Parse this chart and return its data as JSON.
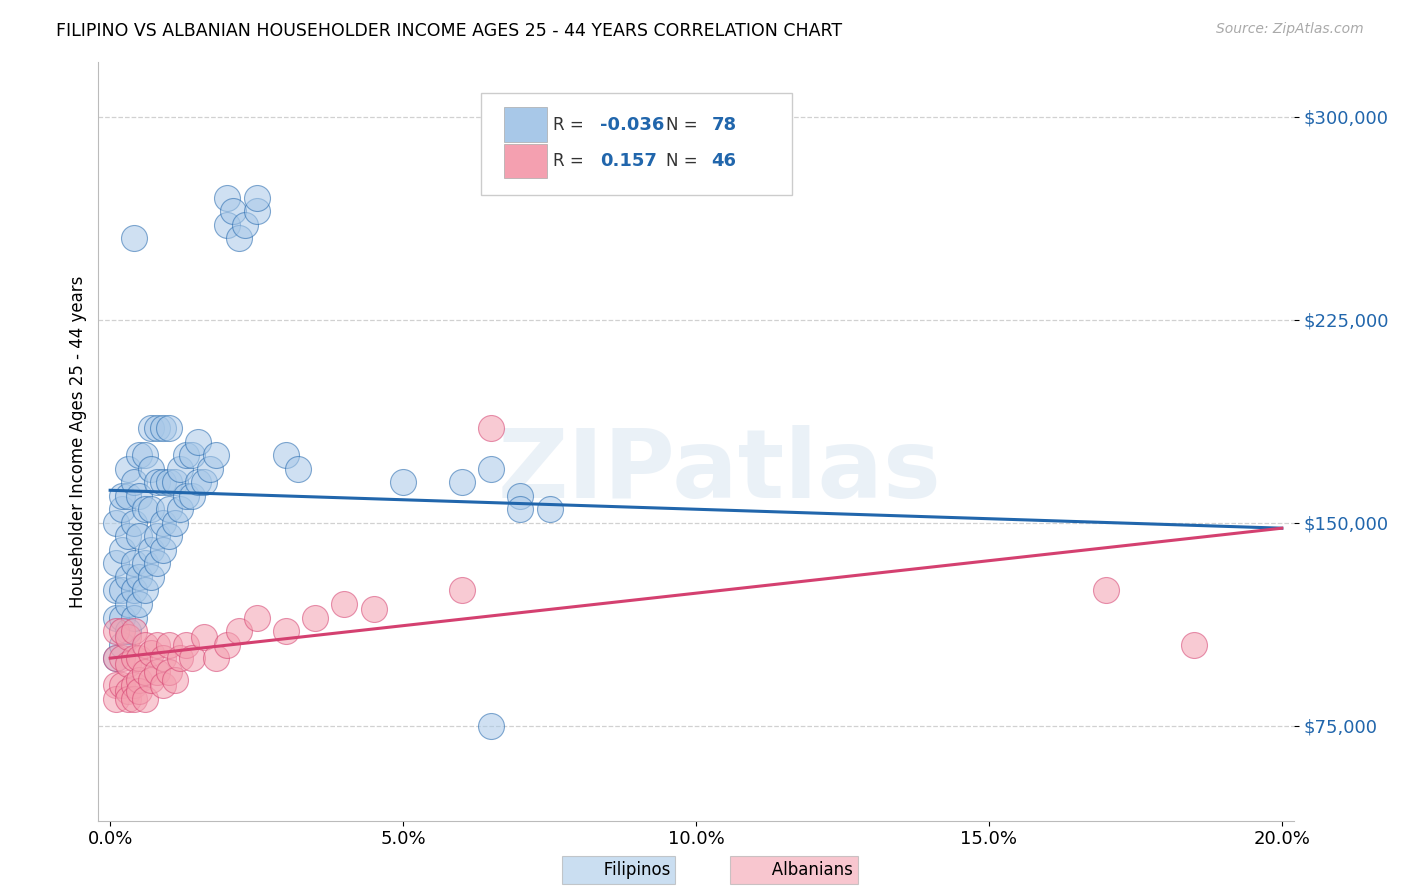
{
  "title": "FILIPINO VS ALBANIAN HOUSEHOLDER INCOME AGES 25 - 44 YEARS CORRELATION CHART",
  "source": "Source: ZipAtlas.com",
  "xlabel_ticks": [
    "0.0%",
    "5.0%",
    "10.0%",
    "15.0%",
    "20.0%"
  ],
  "xlabel_tick_vals": [
    0.0,
    0.05,
    0.1,
    0.15,
    0.2
  ],
  "ylabel": "Householder Income Ages 25 - 44 years",
  "ytick_vals": [
    75000,
    150000,
    225000,
    300000
  ],
  "ytick_labels": [
    "$75,000",
    "$150,000",
    "$225,000",
    "$300,000"
  ],
  "ylim": [
    40000,
    320000
  ],
  "xlim": [
    -0.002,
    0.202
  ],
  "blue_color": "#a8c8e8",
  "blue_line_color": "#2166ac",
  "pink_color": "#f4a0b0",
  "pink_line_color": "#d44070",
  "watermark": "ZIPatlas",
  "legend_label_filipino": "Filipinos",
  "legend_label_albanian": "Albanians",
  "fil_line_x0": 0.0,
  "fil_line_x1": 0.2,
  "fil_line_y0": 162000,
  "fil_line_y1": 148000,
  "alb_line_x0": 0.0,
  "alb_line_x1": 0.2,
  "alb_line_y0": 100000,
  "alb_line_y1": 148000,
  "filipino_x": [
    0.001,
    0.001,
    0.001,
    0.001,
    0.001,
    0.002,
    0.002,
    0.002,
    0.002,
    0.002,
    0.002,
    0.003,
    0.003,
    0.003,
    0.003,
    0.003,
    0.003,
    0.004,
    0.004,
    0.004,
    0.004,
    0.004,
    0.004,
    0.005,
    0.005,
    0.005,
    0.005,
    0.005,
    0.006,
    0.006,
    0.006,
    0.006,
    0.007,
    0.007,
    0.007,
    0.007,
    0.007,
    0.008,
    0.008,
    0.008,
    0.008,
    0.009,
    0.009,
    0.009,
    0.009,
    0.01,
    0.01,
    0.01,
    0.01,
    0.011,
    0.011,
    0.012,
    0.012,
    0.013,
    0.013,
    0.014,
    0.014,
    0.015,
    0.015,
    0.016,
    0.017,
    0.018,
    0.02,
    0.02,
    0.021,
    0.022,
    0.023,
    0.025,
    0.025,
    0.03,
    0.032,
    0.05,
    0.06,
    0.065,
    0.07,
    0.075,
    0.065,
    0.07
  ],
  "filipino_y": [
    100000,
    115000,
    125000,
    135000,
    150000,
    105000,
    115000,
    125000,
    140000,
    155000,
    160000,
    110000,
    120000,
    130000,
    145000,
    160000,
    170000,
    115000,
    125000,
    135000,
    150000,
    165000,
    255000,
    120000,
    130000,
    145000,
    160000,
    175000,
    125000,
    135000,
    155000,
    175000,
    130000,
    140000,
    155000,
    170000,
    185000,
    135000,
    145000,
    165000,
    185000,
    140000,
    150000,
    165000,
    185000,
    145000,
    155000,
    165000,
    185000,
    150000,
    165000,
    155000,
    170000,
    160000,
    175000,
    160000,
    175000,
    165000,
    180000,
    165000,
    170000,
    175000,
    260000,
    270000,
    265000,
    255000,
    260000,
    265000,
    270000,
    175000,
    170000,
    165000,
    165000,
    170000,
    160000,
    155000,
    75000,
    155000
  ],
  "albanian_x": [
    0.001,
    0.001,
    0.001,
    0.001,
    0.002,
    0.002,
    0.002,
    0.003,
    0.003,
    0.003,
    0.003,
    0.004,
    0.004,
    0.004,
    0.004,
    0.005,
    0.005,
    0.005,
    0.006,
    0.006,
    0.006,
    0.007,
    0.007,
    0.008,
    0.008,
    0.009,
    0.009,
    0.01,
    0.01,
    0.011,
    0.012,
    0.013,
    0.014,
    0.016,
    0.018,
    0.02,
    0.022,
    0.025,
    0.03,
    0.035,
    0.04,
    0.045,
    0.06,
    0.065,
    0.17,
    0.185
  ],
  "albanian_y": [
    90000,
    100000,
    110000,
    85000,
    90000,
    100000,
    110000,
    88000,
    98000,
    108000,
    85000,
    90000,
    100000,
    110000,
    85000,
    92000,
    100000,
    88000,
    95000,
    105000,
    85000,
    92000,
    102000,
    95000,
    105000,
    90000,
    100000,
    95000,
    105000,
    92000,
    100000,
    105000,
    100000,
    108000,
    100000,
    105000,
    110000,
    115000,
    110000,
    115000,
    120000,
    118000,
    125000,
    185000,
    125000,
    105000
  ]
}
